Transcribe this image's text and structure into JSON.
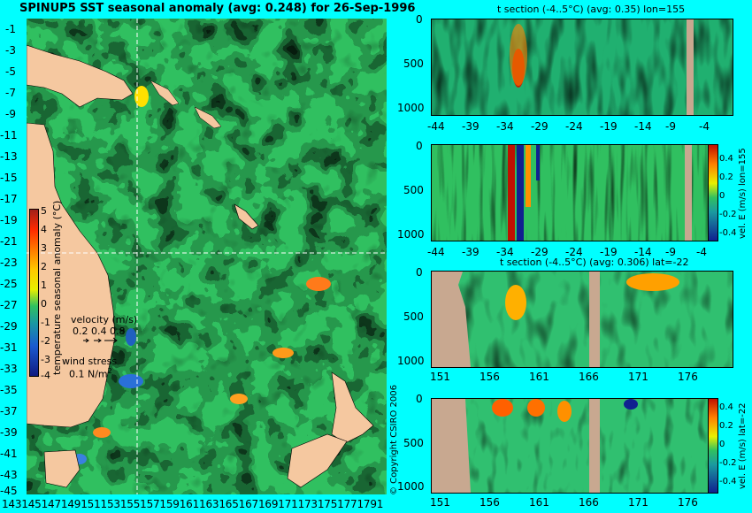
{
  "map": {
    "title": "SPINUP5 SST seasonal anomaly (avg: 0.248) for 26-Sep-1996",
    "lat_ticks": [
      "-1",
      "-3",
      "-5",
      "-7",
      "-9",
      "-11",
      "-13",
      "-15",
      "-17",
      "-19",
      "-21",
      "-23",
      "-25",
      "-27",
      "-29",
      "-31",
      "-33",
      "-35",
      "-37",
      "-39",
      "-41",
      "-43",
      "-45"
    ],
    "lon_ticks_text": "1431451471491511531551571591611631651671691711731751771791",
    "colorbar": {
      "label": "temperature seasonal anomaly (°C)",
      "ticks": [
        "5",
        "4",
        "3",
        "2",
        "1",
        "0",
        "-1",
        "-2",
        "-3",
        "-4"
      ]
    },
    "velocity_legend": {
      "title": "velocity (m/s)",
      "scale": "0.2 0.4 0.8"
    },
    "wind_legend": {
      "title": "wind stress",
      "value": "0.1 N/m",
      "sup": "2"
    },
    "section_lon": 155,
    "section_lat": -22,
    "colors": {
      "land": "#f5c8a0",
      "sea": "#33c060",
      "guide": "#ffffff"
    }
  },
  "copyright": "© Copyright CSIRO 2006",
  "panels": [
    {
      "id": "t-section-lon",
      "title": "t section (-4..5°C) (avg: 0.35) lon=155",
      "x_ticks": [
        "-44",
        "-39",
        "-34",
        "-29",
        "-24",
        "-19",
        "-14",
        "-9",
        "-4"
      ],
      "y_ticks": [
        "0",
        "500",
        "1000"
      ],
      "side_label": "",
      "colorbar_ticks": []
    },
    {
      "id": "vel-e-lon",
      "title": "",
      "x_ticks": [
        "-44",
        "-39",
        "-34",
        "-29",
        "-24",
        "-19",
        "-14",
        "-9",
        "-4"
      ],
      "y_ticks": [
        "0",
        "500",
        "1000"
      ],
      "side_label": "vel. E (m/s) lon=155",
      "colorbar_ticks": [
        "0.4",
        "0.2",
        "0",
        "-0.2",
        "-0.4"
      ]
    },
    {
      "id": "t-section-lat",
      "title": "t section (-4..5°C) (avg: 0.306) lat=-22",
      "x_ticks": [
        "151",
        "156",
        "161",
        "166",
        "171",
        "176"
      ],
      "y_ticks": [
        "0",
        "500",
        "1000"
      ],
      "side_label": "",
      "colorbar_ticks": []
    },
    {
      "id": "vel-e-lat",
      "title": "",
      "x_ticks": [
        "151",
        "156",
        "161",
        "166",
        "171",
        "176"
      ],
      "y_ticks": [
        "0",
        "500",
        "1000"
      ],
      "side_label": "vel. E (m/s) lat=-22",
      "colorbar_ticks": [
        "0.4",
        "0.2",
        "0",
        "-0.2",
        "-0.4"
      ]
    }
  ],
  "chart_data": [
    {
      "type": "heatmap",
      "title": "SPINUP5 SST seasonal anomaly (avg: 0.248) for 26-Sep-1996",
      "xlabel": "",
      "ylabel": "",
      "x_range": [
        143,
        179
      ],
      "y_range": [
        -45,
        -1
      ],
      "colorbar_label": "temperature seasonal anomaly (°C)",
      "colorbar_range": [
        -4,
        5
      ],
      "average": 0.248
    },
    {
      "type": "heatmap",
      "title": "t section (-4..5°C) (avg: 0.35) lon=155",
      "x_range": [
        -45,
        -2
      ],
      "y_range": [
        1000,
        0
      ],
      "average": 0.35
    },
    {
      "type": "heatmap",
      "title": "",
      "side_label": "vel. E (m/s) lon=155",
      "x_range": [
        -45,
        -2
      ],
      "y_range": [
        1000,
        0
      ],
      "colorbar_range": [
        -0.4,
        0.4
      ]
    },
    {
      "type": "heatmap",
      "title": "t section (-4..5°C) (avg: 0.306) lat=-22",
      "x_range": [
        150,
        179
      ],
      "y_range": [
        1000,
        0
      ],
      "average": 0.306
    },
    {
      "type": "heatmap",
      "title": "",
      "side_label": "vel. E (m/s) lat=-22",
      "x_range": [
        150,
        179
      ],
      "y_range": [
        1000,
        0
      ],
      "colorbar_range": [
        -0.4,
        0.4
      ]
    }
  ]
}
